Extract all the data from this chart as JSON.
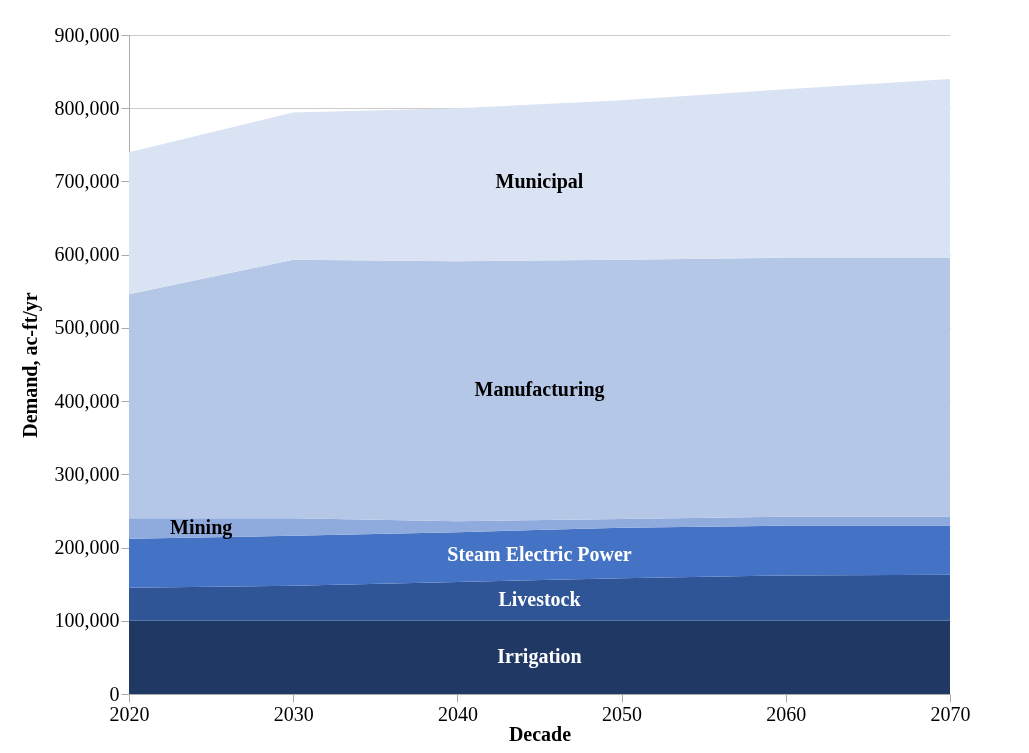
{
  "chart_data": {
    "type": "area",
    "stacked": true,
    "xlabel": "Decade",
    "ylabel": "Demand, ac-ft/yr",
    "x": [
      2020,
      2030,
      2040,
      2050,
      2060,
      2070
    ],
    "series": [
      {
        "name": "Irrigation",
        "color": "#1f3864",
        "values": [
          100000,
          100000,
          100000,
          100000,
          100000,
          100000
        ]
      },
      {
        "name": "Livestock",
        "color": "#2f5597",
        "values": [
          45000,
          48000,
          53000,
          58000,
          62000,
          63000
        ]
      },
      {
        "name": "Steam Electric Power",
        "color": "#4472c4",
        "values": [
          67000,
          68000,
          68000,
          69000,
          68000,
          67000
        ]
      },
      {
        "name": "Mining",
        "color": "#8faadc",
        "values": [
          28000,
          24000,
          15000,
          12000,
          12000,
          12000
        ]
      },
      {
        "name": "Manufacturing",
        "color": "#b4c7e7",
        "values": [
          306000,
          353000,
          355000,
          354000,
          354000,
          354000
        ]
      },
      {
        "name": "Municipal",
        "color": "#dae3f3",
        "values": [
          194000,
          201000,
          209000,
          218000,
          230000,
          244000
        ]
      }
    ],
    "xlim": [
      2020,
      2070
    ],
    "xticks": [
      2020,
      2030,
      2040,
      2050,
      2060,
      2070
    ],
    "ylim": [
      0,
      900000
    ],
    "yticks": [
      0,
      {
        "value": 100000,
        "label": "100,000"
      },
      {
        "value": 200000,
        "label": "200,000"
      },
      {
        "value": 300000,
        "label": "300,000"
      },
      {
        "value": 400000,
        "label": "400,000"
      },
      {
        "value": 500000,
        "label": "500,000"
      },
      {
        "value": 600000,
        "label": "600,000"
      },
      {
        "value": 700000,
        "label": "700,000"
      },
      {
        "value": 800000,
        "label": "800,000"
      },
      {
        "value": 900000,
        "label": "900,000"
      }
    ],
    "grid": "y",
    "legend": false
  }
}
